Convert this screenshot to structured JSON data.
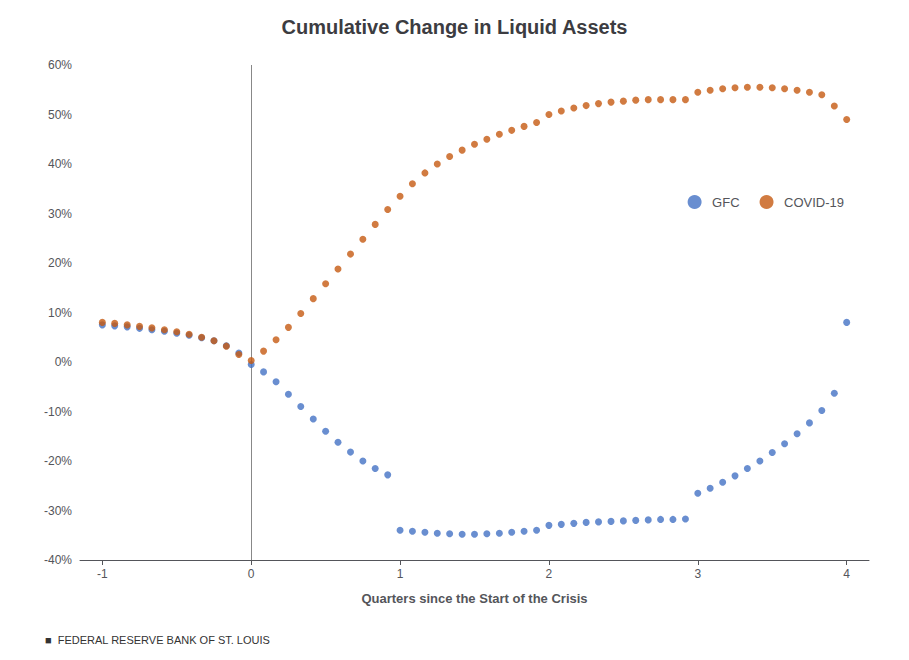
{
  "chart_data": {
    "type": "scatter",
    "title": "Cumulative Change in Liquid Assets",
    "xlabel": "Quarters since the Start of the Crisis",
    "footnote": "■  FEDERAL RESERVE BANK OF ST. LOUIS",
    "xlim": [
      -1.15,
      4.15
    ],
    "ylim": [
      -0.4,
      0.6
    ],
    "xticks": [
      -1,
      0,
      1,
      2,
      3,
      4
    ],
    "yticks": [
      {
        "value": -0.4,
        "label": "-40%"
      },
      {
        "value": -0.3,
        "label": "-30%"
      },
      {
        "value": -0.2,
        "label": "-20%"
      },
      {
        "value": -0.1,
        "label": "-10%"
      },
      {
        "value": 0.0,
        "label": "0%"
      },
      {
        "value": 0.1,
        "label": "10%"
      },
      {
        "value": 0.2,
        "label": "20%"
      },
      {
        "value": 0.3,
        "label": "30%"
      },
      {
        "value": 0.4,
        "label": "40%"
      },
      {
        "value": 0.5,
        "label": "50%"
      },
      {
        "value": 0.6,
        "label": "60%"
      }
    ],
    "grid": false,
    "legend": "upper right",
    "vlines": [
      0
    ],
    "x": [
      -1.0,
      -0.917,
      -0.833,
      -0.75,
      -0.667,
      -0.583,
      -0.5,
      -0.417,
      -0.333,
      -0.25,
      -0.167,
      -0.083,
      0.0,
      0.083,
      0.167,
      0.25,
      0.333,
      0.417,
      0.5,
      0.583,
      0.667,
      0.75,
      0.833,
      0.917,
      1.0,
      1.083,
      1.167,
      1.25,
      1.333,
      1.417,
      1.5,
      1.583,
      1.667,
      1.75,
      1.833,
      1.917,
      2.0,
      2.083,
      2.167,
      2.25,
      2.333,
      2.417,
      2.5,
      2.583,
      2.667,
      2.75,
      2.833,
      2.917,
      3.0,
      3.083,
      3.167,
      3.25,
      3.333,
      3.417,
      3.5,
      3.583,
      3.667,
      3.75,
      3.833,
      3.917,
      4.0
    ],
    "series": [
      {
        "name": "GFC",
        "color": "#4472C4",
        "marker": "circle",
        "values": [
          0.075,
          0.073,
          0.071,
          0.068,
          0.065,
          0.062,
          0.058,
          0.054,
          0.049,
          0.043,
          0.033,
          0.018,
          -0.005,
          -0.02,
          -0.04,
          -0.065,
          -0.09,
          -0.115,
          -0.14,
          -0.162,
          -0.182,
          -0.2,
          -0.215,
          -0.228,
          -0.34,
          -0.342,
          -0.344,
          -0.346,
          -0.347,
          -0.348,
          -0.348,
          -0.347,
          -0.346,
          -0.344,
          -0.342,
          -0.34,
          -0.33,
          -0.328,
          -0.326,
          -0.324,
          -0.323,
          -0.322,
          -0.321,
          -0.32,
          -0.319,
          -0.318,
          -0.318,
          -0.317,
          -0.265,
          -0.255,
          -0.243,
          -0.23,
          -0.215,
          -0.2,
          -0.183,
          -0.165,
          -0.145,
          -0.123,
          -0.098,
          -0.063,
          0.08
        ]
      },
      {
        "name": "COVID-19",
        "color": "#C55A11",
        "marker": "circle",
        "values": [
          0.08,
          0.078,
          0.075,
          0.072,
          0.069,
          0.065,
          0.061,
          0.056,
          0.05,
          0.043,
          0.032,
          0.015,
          0.003,
          0.022,
          0.045,
          0.07,
          0.098,
          0.128,
          0.158,
          0.188,
          0.218,
          0.248,
          0.278,
          0.308,
          0.335,
          0.36,
          0.382,
          0.4,
          0.415,
          0.428,
          0.44,
          0.45,
          0.46,
          0.468,
          0.476,
          0.484,
          0.5,
          0.507,
          0.513,
          0.518,
          0.522,
          0.525,
          0.527,
          0.529,
          0.53,
          0.53,
          0.53,
          0.53,
          0.545,
          0.549,
          0.552,
          0.554,
          0.555,
          0.555,
          0.554,
          0.552,
          0.549,
          0.545,
          0.54,
          0.517,
          0.49
        ]
      }
    ]
  }
}
